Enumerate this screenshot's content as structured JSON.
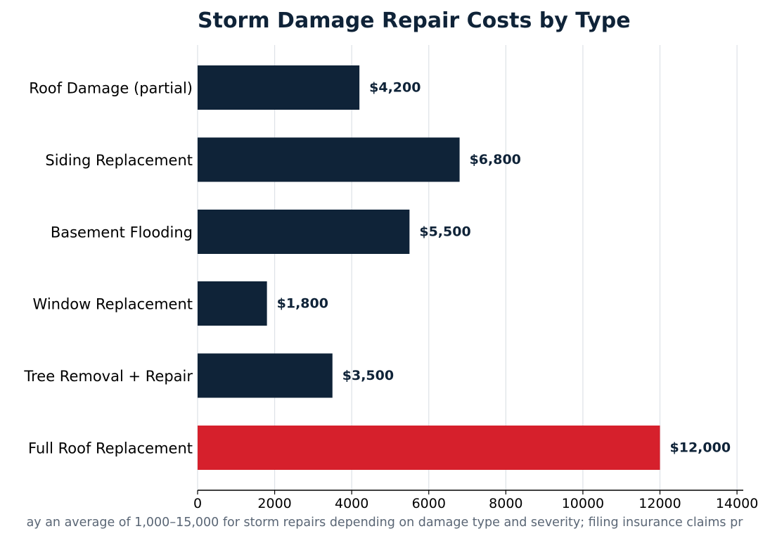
{
  "chart_data": {
    "type": "bar",
    "orientation": "horizontal",
    "title": "Storm Damage Repair Costs by Type",
    "categories": [
      "Roof Damage (partial)",
      "Siding Replacement",
      "Basement Flooding",
      "Window Replacement",
      "Tree Removal + Repair",
      "Full Roof Replacement"
    ],
    "values": [
      4200,
      6800,
      5500,
      1800,
      3500,
      12000
    ],
    "value_labels": [
      "$4,200",
      "$6,800",
      "$5,500",
      "$1,800",
      "$3,500",
      "$12,000"
    ],
    "xlim": [
      0,
      14000
    ],
    "x_ticks": [
      0,
      2000,
      4000,
      6000,
      8000,
      10000,
      12000,
      14000
    ],
    "x_tick_labels": [
      "0",
      "2000",
      "4000",
      "6000",
      "8000",
      "10000",
      "12000",
      "14000"
    ],
    "xlabel": "",
    "ylabel": "",
    "grid": "vertical",
    "legend": "none",
    "footnote": "ay an average of 1,000–15,000 for storm repairs depending on damage type and severity; filing insurance claims pr",
    "colors": {
      "bar_default": "#0f2338",
      "bar_highlight": "#d6202c",
      "title": "#0f2338",
      "value_label": "#0f2338",
      "grid": "#dde1e7",
      "axis": "#000000",
      "footnote": "#5a6675",
      "tick_label": "#000000"
    },
    "highlight_index": 5
  }
}
